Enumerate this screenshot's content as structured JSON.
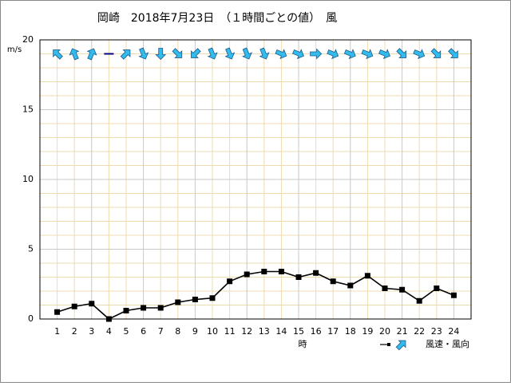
{
  "chart_data": {
    "type": "line",
    "title": "岡崎　2018年7月23日　（１時間ごとの値）　風",
    "y_label": "m/s",
    "x_label": "時",
    "legend_label": "風速・風向",
    "x": [
      1,
      2,
      3,
      4,
      5,
      6,
      7,
      8,
      9,
      10,
      11,
      12,
      13,
      14,
      15,
      16,
      17,
      18,
      19,
      20,
      21,
      22,
      23,
      24
    ],
    "xlim": [
      0,
      25
    ],
    "series": [
      {
        "name": "風速",
        "color": "#000000",
        "values": [
          0.5,
          0.9,
          1.1,
          0,
          0.6,
          0.8,
          0.8,
          1.2,
          1.4,
          1.5,
          2.7,
          3.2,
          3.4,
          3.4,
          3.0,
          3.3,
          2.7,
          2.4,
          3.1,
          2.2,
          2.1,
          1.3,
          2.2,
          1.7
        ]
      }
    ],
    "directions": [
      315,
      337.5,
      22.5,
      null,
      45,
      157.5,
      180,
      135,
      225,
      157.5,
      157.5,
      157.5,
      157.5,
      112.5,
      112.5,
      90,
      112.5,
      112.5,
      112.5,
      112.5,
      135,
      112.5,
      135,
      135
    ],
    "direction_y": 19,
    "arrow_color": "#33bbee",
    "ylim": [
      0,
      20
    ],
    "yticks": [
      0,
      5,
      10,
      15,
      20
    ],
    "minor_grid_step": 1,
    "grid": true
  }
}
